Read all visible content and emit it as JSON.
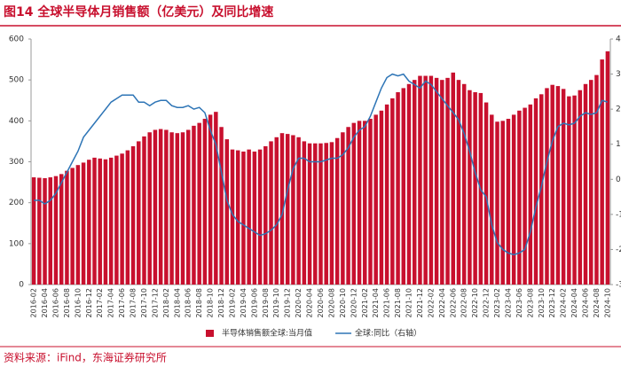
{
  "chart_data": {
    "type": "bar-line",
    "title": "图14  全球半导体月销售额（亿美元）及同比增速",
    "source": "资料来源：iFind，东海证券研究所",
    "categories": [
      "2016-02",
      null,
      "2016-04",
      null,
      "2016-06",
      null,
      "2016-08",
      null,
      "2016-10",
      null,
      "2016-12",
      null,
      "2017-02",
      null,
      "2017-04",
      null,
      "2017-06",
      null,
      "2017-08",
      null,
      "2017-10",
      null,
      "2017-12",
      null,
      "2018-02",
      null,
      "2018-04",
      null,
      "2018-06",
      null,
      "2018-08",
      null,
      "2018-10",
      null,
      "2018-12",
      null,
      "2019-02",
      null,
      "2019-04",
      null,
      "2019-06",
      null,
      "2019-08",
      null,
      "2019-10",
      null,
      "2019-12",
      null,
      "2020-02",
      null,
      "2020-04",
      null,
      "2020-06",
      null,
      "2020-08",
      null,
      "2020-10",
      null,
      "2020-12",
      null,
      "2021-02",
      null,
      "2021-04",
      null,
      "2021-06",
      null,
      "2021-08",
      null,
      "2021-10",
      null,
      "2021-12",
      null,
      "2022-02",
      null,
      "2022-04",
      null,
      "2022-06",
      null,
      "2022-08",
      null,
      "2022-10",
      null,
      "2022-12",
      null,
      "2023-02",
      null,
      "2023-04",
      null,
      "2023-06",
      null,
      "2023-08",
      null,
      "2023-10",
      null,
      "2023-12",
      null,
      "2024-02",
      null,
      "2024-04",
      null,
      "2024-06",
      null,
      "2024-08",
      null,
      "2024-10"
    ],
    "series": [
      {
        "name": "半导体销售额全球:当月值",
        "color": "#c8102e",
        "kind": "bar",
        "values": [
          262,
          261,
          260,
          262,
          265,
          270,
          278,
          285,
          292,
          298,
          305,
          310,
          308,
          306,
          310,
          315,
          320,
          328,
          338,
          350,
          362,
          372,
          378,
          380,
          378,
          372,
          370,
          372,
          378,
          388,
          395,
          405,
          415,
          422,
          385,
          355,
          330,
          328,
          325,
          330,
          325,
          330,
          338,
          350,
          360,
          370,
          368,
          365,
          360,
          350,
          345,
          345,
          345,
          346,
          348,
          358,
          372,
          385,
          395,
          400,
          400,
          405,
          415,
          425,
          440,
          455,
          470,
          480,
          490,
          500,
          510,
          510,
          510,
          505,
          500,
          505,
          518,
          500,
          490,
          475,
          470,
          468,
          445,
          415,
          398,
          400,
          405,
          415,
          425,
          432,
          440,
          455,
          465,
          480,
          488,
          485,
          478,
          460,
          462,
          475,
          490,
          500,
          512,
          550,
          570
        ]
      },
      {
        "name": "全球:同比（右轴）",
        "color": "#2e75b6",
        "kind": "line",
        "axis": "y2",
        "values": [
          -6,
          -6,
          -7,
          -6,
          -4,
          -1,
          2,
          5,
          8,
          12,
          14,
          16,
          18,
          20,
          22,
          23,
          24,
          24,
          24,
          22,
          22,
          21,
          22,
          22.5,
          22.5,
          21,
          20.5,
          20.5,
          21,
          20,
          20.5,
          19,
          14,
          10,
          2,
          -6,
          -10,
          -12,
          -13,
          -14,
          -15,
          -16,
          -15.5,
          -14.5,
          -13,
          -10,
          -3,
          3,
          6,
          6,
          5,
          5,
          5,
          5.5,
          6,
          6,
          7,
          9,
          12,
          14,
          15,
          18,
          22,
          26,
          29,
          30,
          29.5,
          30,
          28,
          27,
          26,
          28,
          27,
          25,
          23,
          21,
          19,
          17,
          13,
          8,
          2,
          -3,
          -5,
          -13,
          -18,
          -20,
          -21,
          -21.5,
          -21,
          -20,
          -15,
          -8,
          -2,
          5,
          11,
          15,
          16,
          15.5,
          16,
          18,
          19,
          18.5,
          19,
          22.5,
          22
        ]
      }
    ],
    "ylim": [
      0,
      600
    ],
    "yticks": [
      0,
      100,
      200,
      300,
      400,
      500,
      600
    ],
    "y2lim": [
      -30,
      40
    ],
    "y2ticks": [
      {
        "value": -30,
        "label": "-30%"
      },
      {
        "value": -20,
        "label": "-20%"
      },
      {
        "value": -10,
        "label": "-10%"
      },
      {
        "value": 0,
        "label": "0%"
      },
      {
        "value": 10,
        "label": "10%"
      },
      {
        "value": 20,
        "label": "20%"
      },
      {
        "value": 30,
        "label": "30%"
      },
      {
        "value": 40,
        "label": "40%"
      }
    ],
    "legend": "bottom"
  }
}
